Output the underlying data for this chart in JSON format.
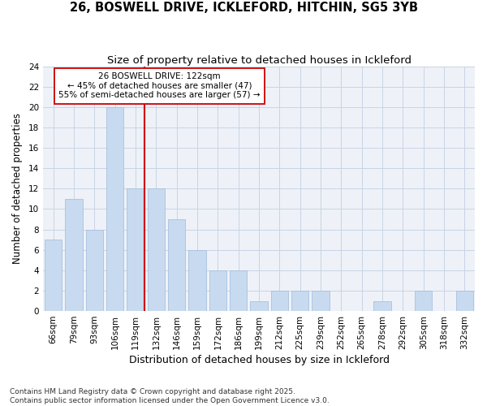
{
  "title_line1": "26, BOSWELL DRIVE, ICKLEFORD, HITCHIN, SG5 3YB",
  "title_line2": "Size of property relative to detached houses in Ickleford",
  "xlabel": "Distribution of detached houses by size in Ickleford",
  "ylabel": "Number of detached properties",
  "categories": [
    "66sqm",
    "79sqm",
    "93sqm",
    "106sqm",
    "119sqm",
    "132sqm",
    "146sqm",
    "159sqm",
    "172sqm",
    "186sqm",
    "199sqm",
    "212sqm",
    "225sqm",
    "239sqm",
    "252sqm",
    "265sqm",
    "278sqm",
    "292sqm",
    "305sqm",
    "318sqm",
    "332sqm"
  ],
  "values": [
    7,
    11,
    8,
    20,
    12,
    12,
    9,
    6,
    4,
    4,
    1,
    2,
    2,
    2,
    0,
    0,
    1,
    0,
    2,
    0,
    2
  ],
  "bar_color": "#c8daef",
  "bar_edgecolor": "#a8c0de",
  "grid_color": "#c8d4e4",
  "background_color": "#ffffff",
  "plot_bg_color": "#eef2f8",
  "vline_color": "#cc0000",
  "annotation_text": "26 BOSWELL DRIVE: 122sqm\n← 45% of detached houses are smaller (47)\n55% of semi-detached houses are larger (57) →",
  "annotation_box_color": "#ffffff",
  "annotation_box_edgecolor": "#cc0000",
  "ylim": [
    0,
    24
  ],
  "yticks": [
    0,
    2,
    4,
    6,
    8,
    10,
    12,
    14,
    16,
    18,
    20,
    22,
    24
  ],
  "footnote": "Contains HM Land Registry data © Crown copyright and database right 2025.\nContains public sector information licensed under the Open Government Licence v3.0.",
  "title_fontsize": 10.5,
  "subtitle_fontsize": 9.5,
  "tick_fontsize": 7.5,
  "xlabel_fontsize": 9,
  "ylabel_fontsize": 8.5,
  "annotation_fontsize": 7.5,
  "footnote_fontsize": 6.5
}
